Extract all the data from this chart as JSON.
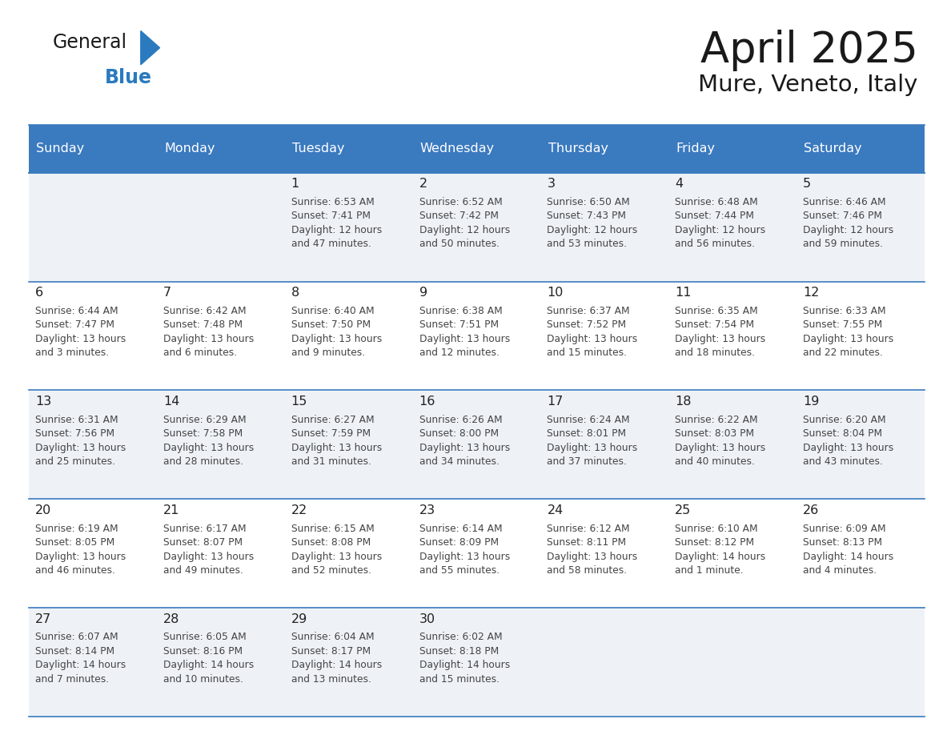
{
  "title": "April 2025",
  "subtitle": "Mure, Veneto, Italy",
  "days_of_week": [
    "Sunday",
    "Monday",
    "Tuesday",
    "Wednesday",
    "Thursday",
    "Friday",
    "Saturday"
  ],
  "header_bg": "#3a7abf",
  "header_text": "#ffffff",
  "row_bg_light": "#eef2f7",
  "row_bg_white": "#ffffff",
  "cell_border_color": "#3a7abf",
  "day_number_color": "#222222",
  "text_color": "#444444",
  "title_color": "#1a1a1a",
  "logo_black": "#1a1a1a",
  "logo_blue": "#2a7abf",
  "weeks": [
    [
      {
        "day": "",
        "sunrise": "",
        "sunset": "",
        "daylight": ""
      },
      {
        "day": "",
        "sunrise": "",
        "sunset": "",
        "daylight": ""
      },
      {
        "day": "1",
        "sunrise": "Sunrise: 6:53 AM",
        "sunset": "Sunset: 7:41 PM",
        "daylight": "Daylight: 12 hours\nand 47 minutes."
      },
      {
        "day": "2",
        "sunrise": "Sunrise: 6:52 AM",
        "sunset": "Sunset: 7:42 PM",
        "daylight": "Daylight: 12 hours\nand 50 minutes."
      },
      {
        "day": "3",
        "sunrise": "Sunrise: 6:50 AM",
        "sunset": "Sunset: 7:43 PM",
        "daylight": "Daylight: 12 hours\nand 53 minutes."
      },
      {
        "day": "4",
        "sunrise": "Sunrise: 6:48 AM",
        "sunset": "Sunset: 7:44 PM",
        "daylight": "Daylight: 12 hours\nand 56 minutes."
      },
      {
        "day": "5",
        "sunrise": "Sunrise: 6:46 AM",
        "sunset": "Sunset: 7:46 PM",
        "daylight": "Daylight: 12 hours\nand 59 minutes."
      }
    ],
    [
      {
        "day": "6",
        "sunrise": "Sunrise: 6:44 AM",
        "sunset": "Sunset: 7:47 PM",
        "daylight": "Daylight: 13 hours\nand 3 minutes."
      },
      {
        "day": "7",
        "sunrise": "Sunrise: 6:42 AM",
        "sunset": "Sunset: 7:48 PM",
        "daylight": "Daylight: 13 hours\nand 6 minutes."
      },
      {
        "day": "8",
        "sunrise": "Sunrise: 6:40 AM",
        "sunset": "Sunset: 7:50 PM",
        "daylight": "Daylight: 13 hours\nand 9 minutes."
      },
      {
        "day": "9",
        "sunrise": "Sunrise: 6:38 AM",
        "sunset": "Sunset: 7:51 PM",
        "daylight": "Daylight: 13 hours\nand 12 minutes."
      },
      {
        "day": "10",
        "sunrise": "Sunrise: 6:37 AM",
        "sunset": "Sunset: 7:52 PM",
        "daylight": "Daylight: 13 hours\nand 15 minutes."
      },
      {
        "day": "11",
        "sunrise": "Sunrise: 6:35 AM",
        "sunset": "Sunset: 7:54 PM",
        "daylight": "Daylight: 13 hours\nand 18 minutes."
      },
      {
        "day": "12",
        "sunrise": "Sunrise: 6:33 AM",
        "sunset": "Sunset: 7:55 PM",
        "daylight": "Daylight: 13 hours\nand 22 minutes."
      }
    ],
    [
      {
        "day": "13",
        "sunrise": "Sunrise: 6:31 AM",
        "sunset": "Sunset: 7:56 PM",
        "daylight": "Daylight: 13 hours\nand 25 minutes."
      },
      {
        "day": "14",
        "sunrise": "Sunrise: 6:29 AM",
        "sunset": "Sunset: 7:58 PM",
        "daylight": "Daylight: 13 hours\nand 28 minutes."
      },
      {
        "day": "15",
        "sunrise": "Sunrise: 6:27 AM",
        "sunset": "Sunset: 7:59 PM",
        "daylight": "Daylight: 13 hours\nand 31 minutes."
      },
      {
        "day": "16",
        "sunrise": "Sunrise: 6:26 AM",
        "sunset": "Sunset: 8:00 PM",
        "daylight": "Daylight: 13 hours\nand 34 minutes."
      },
      {
        "day": "17",
        "sunrise": "Sunrise: 6:24 AM",
        "sunset": "Sunset: 8:01 PM",
        "daylight": "Daylight: 13 hours\nand 37 minutes."
      },
      {
        "day": "18",
        "sunrise": "Sunrise: 6:22 AM",
        "sunset": "Sunset: 8:03 PM",
        "daylight": "Daylight: 13 hours\nand 40 minutes."
      },
      {
        "day": "19",
        "sunrise": "Sunrise: 6:20 AM",
        "sunset": "Sunset: 8:04 PM",
        "daylight": "Daylight: 13 hours\nand 43 minutes."
      }
    ],
    [
      {
        "day": "20",
        "sunrise": "Sunrise: 6:19 AM",
        "sunset": "Sunset: 8:05 PM",
        "daylight": "Daylight: 13 hours\nand 46 minutes."
      },
      {
        "day": "21",
        "sunrise": "Sunrise: 6:17 AM",
        "sunset": "Sunset: 8:07 PM",
        "daylight": "Daylight: 13 hours\nand 49 minutes."
      },
      {
        "day": "22",
        "sunrise": "Sunrise: 6:15 AM",
        "sunset": "Sunset: 8:08 PM",
        "daylight": "Daylight: 13 hours\nand 52 minutes."
      },
      {
        "day": "23",
        "sunrise": "Sunrise: 6:14 AM",
        "sunset": "Sunset: 8:09 PM",
        "daylight": "Daylight: 13 hours\nand 55 minutes."
      },
      {
        "day": "24",
        "sunrise": "Sunrise: 6:12 AM",
        "sunset": "Sunset: 8:11 PM",
        "daylight": "Daylight: 13 hours\nand 58 minutes."
      },
      {
        "day": "25",
        "sunrise": "Sunrise: 6:10 AM",
        "sunset": "Sunset: 8:12 PM",
        "daylight": "Daylight: 14 hours\nand 1 minute."
      },
      {
        "day": "26",
        "sunrise": "Sunrise: 6:09 AM",
        "sunset": "Sunset: 8:13 PM",
        "daylight": "Daylight: 14 hours\nand 4 minutes."
      }
    ],
    [
      {
        "day": "27",
        "sunrise": "Sunrise: 6:07 AM",
        "sunset": "Sunset: 8:14 PM",
        "daylight": "Daylight: 14 hours\nand 7 minutes."
      },
      {
        "day": "28",
        "sunrise": "Sunrise: 6:05 AM",
        "sunset": "Sunset: 8:16 PM",
        "daylight": "Daylight: 14 hours\nand 10 minutes."
      },
      {
        "day": "29",
        "sunrise": "Sunrise: 6:04 AM",
        "sunset": "Sunset: 8:17 PM",
        "daylight": "Daylight: 14 hours\nand 13 minutes."
      },
      {
        "day": "30",
        "sunrise": "Sunrise: 6:02 AM",
        "sunset": "Sunset: 8:18 PM",
        "daylight": "Daylight: 14 hours\nand 15 minutes."
      },
      {
        "day": "",
        "sunrise": "",
        "sunset": "",
        "daylight": ""
      },
      {
        "day": "",
        "sunrise": "",
        "sunset": "",
        "daylight": ""
      },
      {
        "day": "",
        "sunrise": "",
        "sunset": "",
        "daylight": ""
      }
    ]
  ]
}
